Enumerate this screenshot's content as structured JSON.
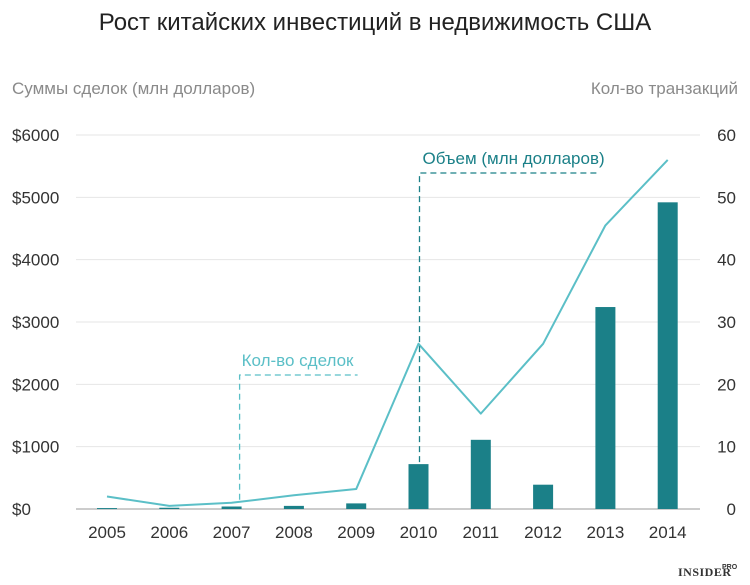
{
  "chart_data": {
    "type": "bar",
    "title": "Рост китайских инвестиций в недвижимость США",
    "ylabel_left": "Суммы сделок (млн долларов)",
    "ylabel_right": "Кол-во транзакций",
    "categories": [
      "2005",
      "2006",
      "2007",
      "2008",
      "2009",
      "2010",
      "2011",
      "2012",
      "2013",
      "2014"
    ],
    "y_left": {
      "range": [
        0,
        6000
      ],
      "ticks": [
        0,
        1000,
        2000,
        3000,
        4000,
        5000,
        6000
      ],
      "tick_labels": [
        "$0",
        "$1000",
        "$2000",
        "$3000",
        "$4000",
        "$5000",
        "$6000"
      ]
    },
    "y_right": {
      "range": [
        0,
        60
      ],
      "ticks": [
        0,
        10,
        20,
        30,
        40,
        50,
        60
      ],
      "tick_labels": [
        "0",
        "10",
        "20",
        "30",
        "40",
        "50",
        "60"
      ]
    },
    "series": [
      {
        "name": "Объем (млн долларов)",
        "type": "bar",
        "axis": "left",
        "color": "#1b8088",
        "values": [
          15,
          20,
          40,
          50,
          90,
          720,
          1110,
          390,
          3240,
          4920
        ]
      },
      {
        "name": "Кол-во сделок",
        "type": "line",
        "axis": "right",
        "color": "#5bbfc7",
        "values": [
          2,
          0.5,
          1,
          2.2,
          3.2,
          26.5,
          15.3,
          26.5,
          45.5,
          56
        ]
      }
    ],
    "annotations": [
      {
        "text": "Объем (млн долларов)",
        "series": "bar",
        "category": "2010",
        "color": "#1b8088"
      },
      {
        "text": "Кол-во сделок",
        "series": "line",
        "category": "2007",
        "color": "#5bbfc7"
      }
    ],
    "grid": true
  },
  "watermark": {
    "main": "INSIDER",
    "sub": "PRO"
  }
}
